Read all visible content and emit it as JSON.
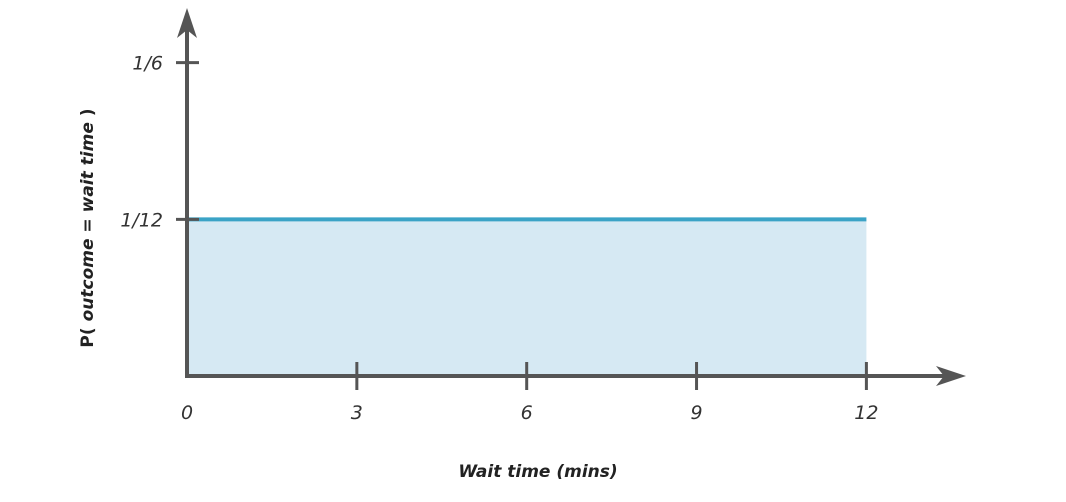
{
  "chart_data": {
    "type": "area",
    "title": "",
    "xlabel": "Wait time (mins)",
    "ylabel_parts": [
      "P( ",
      "outcome",
      "  = ",
      "wait time",
      " )"
    ],
    "x": [
      0,
      12
    ],
    "y": [
      0.0833333,
      0.0833333
    ],
    "xlim": [
      0,
      13.3
    ],
    "ylim": [
      0,
      0.2
    ],
    "xticks": [
      0,
      3,
      6,
      9,
      12
    ],
    "xtick_labels": [
      "0",
      "3",
      "6",
      "9",
      "12"
    ],
    "yticks": [
      0.0833333,
      0.1666667
    ],
    "ytick_labels": [
      "1/12",
      "1/6"
    ],
    "grid": false,
    "legend": "none",
    "colors": {
      "axis": "#555555",
      "line": "#3ba3c6",
      "fill": "#d6e9f3"
    }
  }
}
